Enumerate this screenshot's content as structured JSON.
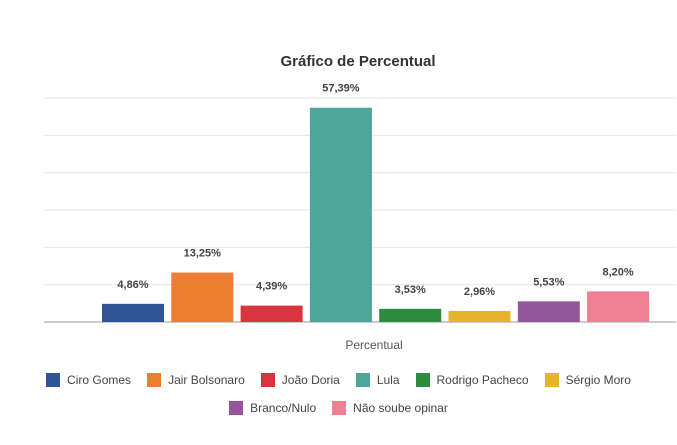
{
  "chart_data": {
    "type": "bar",
    "title": "Gráfico de Percentual",
    "xlabel": "Percentual",
    "ylabel": "",
    "ylim": [
      0,
      60
    ],
    "grid": true,
    "legend_position": "bottom",
    "categories": [
      "Ciro Gomes",
      "Jair Bolsonaro",
      "João Doria",
      "Lula",
      "Rodrigo Pacheco",
      "Sérgio Moro",
      "Branco/Nulo",
      "Não soube opinar"
    ],
    "values": [
      4.86,
      13.25,
      4.39,
      57.39,
      3.53,
      2.96,
      5.53,
      8.2
    ],
    "data_labels": [
      "4,86%",
      "13,25%",
      "4,39%",
      "57,39%",
      "3,53%",
      "2,96%",
      "5,53%",
      "8,20%"
    ],
    "colors": [
      "#2f5597",
      "#ed7d31",
      "#d9343f",
      "#4ea59a",
      "#2e8b3d",
      "#e6b42a",
      "#93569a",
      "#ef7f93"
    ]
  }
}
